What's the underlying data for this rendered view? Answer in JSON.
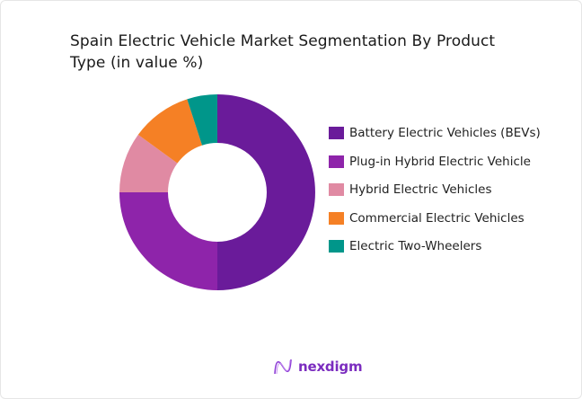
{
  "chart_data": {
    "type": "pie",
    "variant": "donut",
    "title": "Spain Electric Vehicle Market Segmentation By Product Type (in value %)",
    "categories": [
      "Battery Electric Vehicles (BEVs)",
      "Plug-in Hybrid Electric Vehicle",
      "Hybrid Electric Vehicles",
      "Commercial Electric Vehicles",
      "Electric Two-Wheelers"
    ],
    "values": [
      50,
      25,
      10,
      10,
      5
    ],
    "colors": [
      "#6a1b9a",
      "#8e24aa",
      "#e08aa3",
      "#f58025",
      "#00968a"
    ],
    "legend_position": "right"
  },
  "brand": {
    "name": "nexdigm",
    "color": "#7b2cbf"
  }
}
